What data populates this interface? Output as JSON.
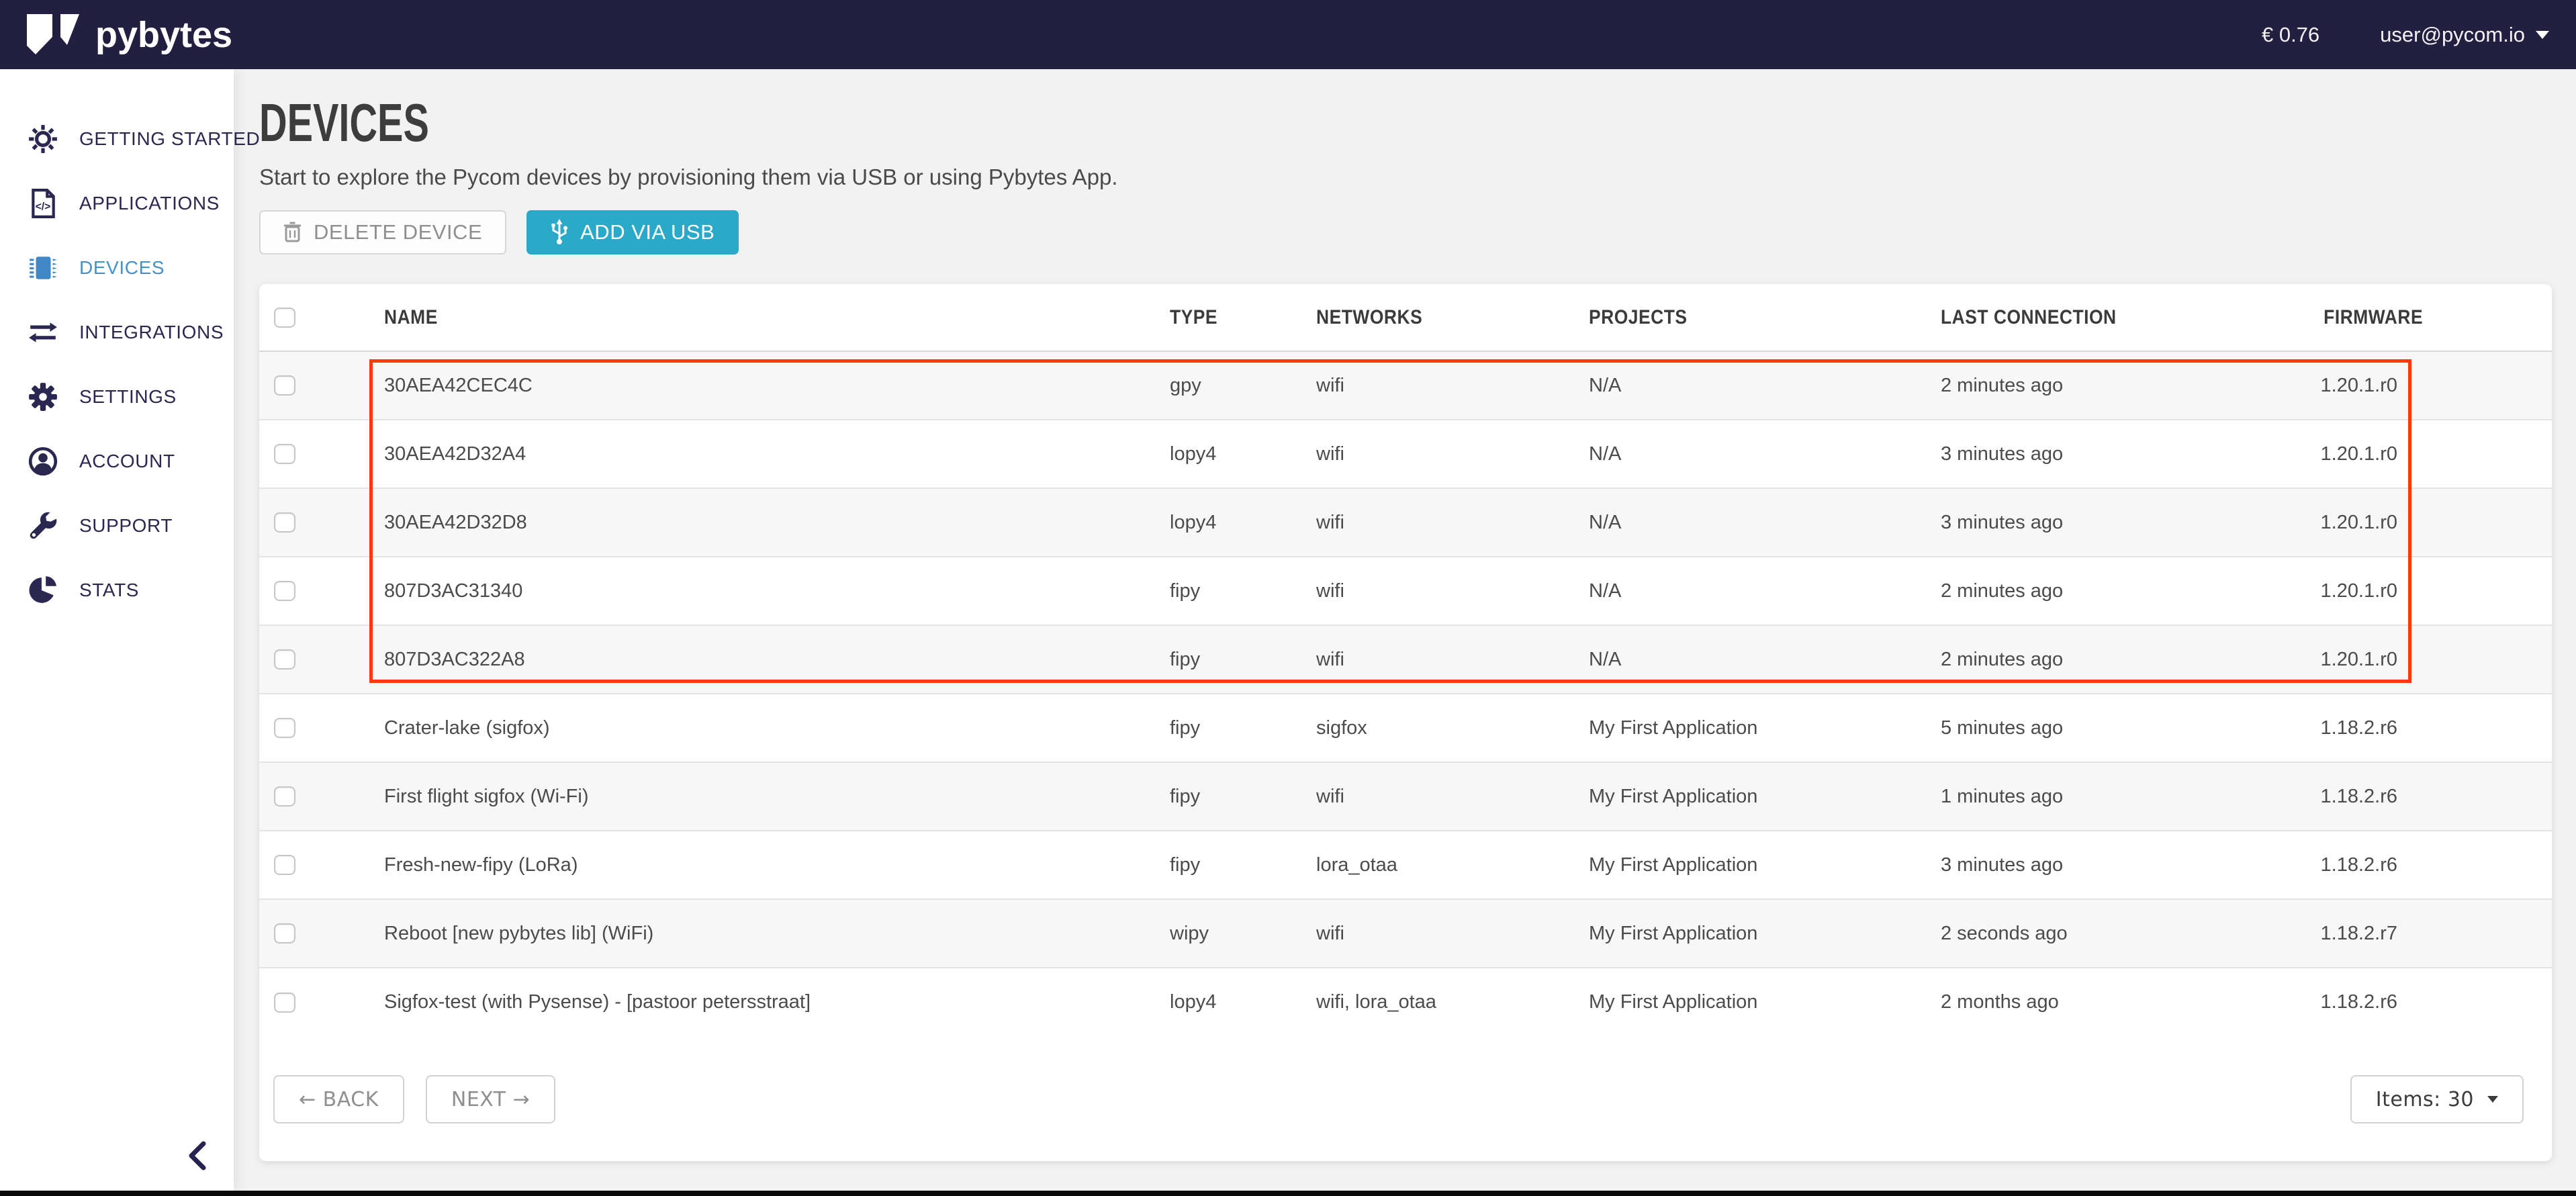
{
  "topbar": {
    "logo_text": "pybytes",
    "balance": "€ 0.76",
    "user_email": "user@pycom.io"
  },
  "sidebar": {
    "items": [
      {
        "label": "GETTING STARTED",
        "icon": "sun-icon",
        "active": false
      },
      {
        "label": "APPLICATIONS",
        "icon": "code-file-icon",
        "active": false
      },
      {
        "label": "DEVICES",
        "icon": "chip-icon",
        "active": true
      },
      {
        "label": "INTEGRATIONS",
        "icon": "exchange-arrows-icon",
        "active": false
      },
      {
        "label": "SETTINGS",
        "icon": "gear-icon",
        "active": false
      },
      {
        "label": "ACCOUNT",
        "icon": "user-icon",
        "active": false
      },
      {
        "label": "SUPPORT",
        "icon": "wrench-icon",
        "active": false
      },
      {
        "label": "STATS",
        "icon": "pie-chart-icon",
        "active": false
      }
    ],
    "collapse_icon": "chevron-left-icon"
  },
  "page": {
    "title": "DEVICES",
    "subtitle": "Start to explore the Pycom devices by provisioning them via USB or using Pybytes App.",
    "delete_button": "DELETE DEVICE",
    "add_usb_button": "ADD VIA USB"
  },
  "table": {
    "columns": [
      "NAME",
      "TYPE",
      "NETWORKS",
      "PROJECTS",
      "LAST CONNECTION",
      "FIRMWARE"
    ],
    "rows": [
      {
        "name": "30AEA42CEC4C",
        "type": "gpy",
        "networks": "wifi",
        "projects": "N/A",
        "last_connection": "2 minutes ago",
        "firmware": "1.20.1.r0",
        "highlighted": true
      },
      {
        "name": "30AEA42D32A4",
        "type": "lopy4",
        "networks": "wifi",
        "projects": "N/A",
        "last_connection": "3 minutes ago",
        "firmware": "1.20.1.r0",
        "highlighted": true
      },
      {
        "name": "30AEA42D32D8",
        "type": "lopy4",
        "networks": "wifi",
        "projects": "N/A",
        "last_connection": "3 minutes ago",
        "firmware": "1.20.1.r0",
        "highlighted": true
      },
      {
        "name": "807D3AC31340",
        "type": "fipy",
        "networks": "wifi",
        "projects": "N/A",
        "last_connection": "2 minutes ago",
        "firmware": "1.20.1.r0",
        "highlighted": true
      },
      {
        "name": "807D3AC322A8",
        "type": "fipy",
        "networks": "wifi",
        "projects": "N/A",
        "last_connection": "2 minutes ago",
        "firmware": "1.20.1.r0",
        "highlighted": true
      },
      {
        "name": "Crater-lake (sigfox)",
        "type": "fipy",
        "networks": "sigfox",
        "projects": "My First Application",
        "last_connection": "5 minutes ago",
        "firmware": "1.18.2.r6",
        "highlighted": false
      },
      {
        "name": "First flight sigfox (Wi-Fi)",
        "type": "fipy",
        "networks": "wifi",
        "projects": "My First Application",
        "last_connection": "1 minutes ago",
        "firmware": "1.18.2.r6",
        "highlighted": false
      },
      {
        "name": "Fresh-new-fipy (LoRa)",
        "type": "fipy",
        "networks": "lora_otaa",
        "projects": "My First Application",
        "last_connection": "3 minutes ago",
        "firmware": "1.18.2.r6",
        "highlighted": false
      },
      {
        "name": "Reboot [new pybytes lib] (WiFi)",
        "type": "wipy",
        "networks": "wifi",
        "projects": "My First Application",
        "last_connection": "2 seconds ago",
        "firmware": "1.18.2.r7",
        "highlighted": false
      },
      {
        "name": "Sigfox-test (with Pysense) - [pastoor petersstraat]",
        "type": "lopy4",
        "networks": "wifi, lora_otaa",
        "projects": "My First Application",
        "last_connection": "2 months ago",
        "firmware": "1.18.2.r6",
        "highlighted": false
      }
    ]
  },
  "pagination": {
    "back_label": "← BACK",
    "next_label": "NEXT →",
    "items_label": "Items: 30"
  },
  "colors": {
    "topbar_bg": "#221f40",
    "navy": "#2a2750",
    "active_blue": "#4391cd",
    "chip_blue": "#3f87c5",
    "teal": "#2ba9c9",
    "red": "#fb3a0e"
  }
}
